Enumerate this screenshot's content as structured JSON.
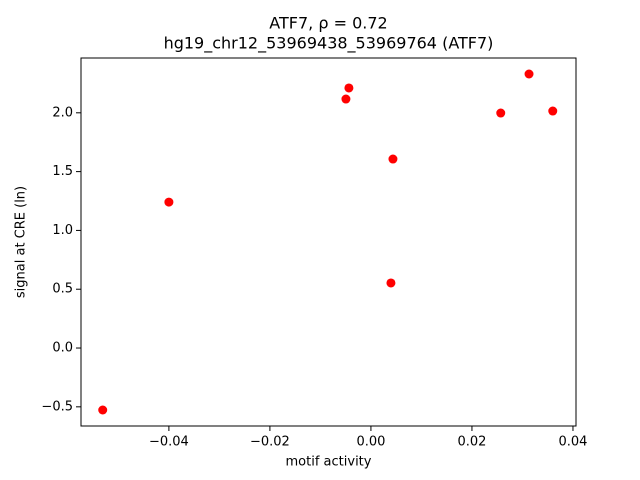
{
  "chart_data": {
    "type": "scatter",
    "title": "ATF7, ρ = 0.72",
    "subtitle": "hg19_chr12_53969438_53969764 (ATF7)",
    "x_label": "motif activity",
    "y_label": "signal at CRE (ln)",
    "color": "#ff0000",
    "series": [
      {
        "x": [
          -0.0531,
          -0.04,
          -0.00495,
          -0.00436,
          0.00436,
          0.00396,
          0.0257,
          0.0313,
          0.036
        ],
        "values": [
          -0.527,
          1.241,
          2.117,
          2.211,
          1.607,
          0.553,
          1.998,
          2.33,
          2.015
        ]
      }
    ],
    "xlim": [
      -0.0574,
      0.0406
    ],
    "ylim": [
      -0.663,
      2.466
    ],
    "xticks": [
      {
        "value": -0.04,
        "label": "−0.04"
      },
      {
        "value": -0.02,
        "label": "−0.02"
      },
      {
        "value": 0,
        "label": "0.00"
      },
      0.02,
      0.04
    ],
    "yticks": [
      {
        "value": -0.5,
        "label": "−0.5"
      },
      {
        "value": 0,
        "label": "0.0"
      },
      0.5,
      {
        "value": 1,
        "label": "1.0"
      },
      1.5,
      {
        "value": 2,
        "label": "2.0"
      }
    ],
    "grid": false
  }
}
